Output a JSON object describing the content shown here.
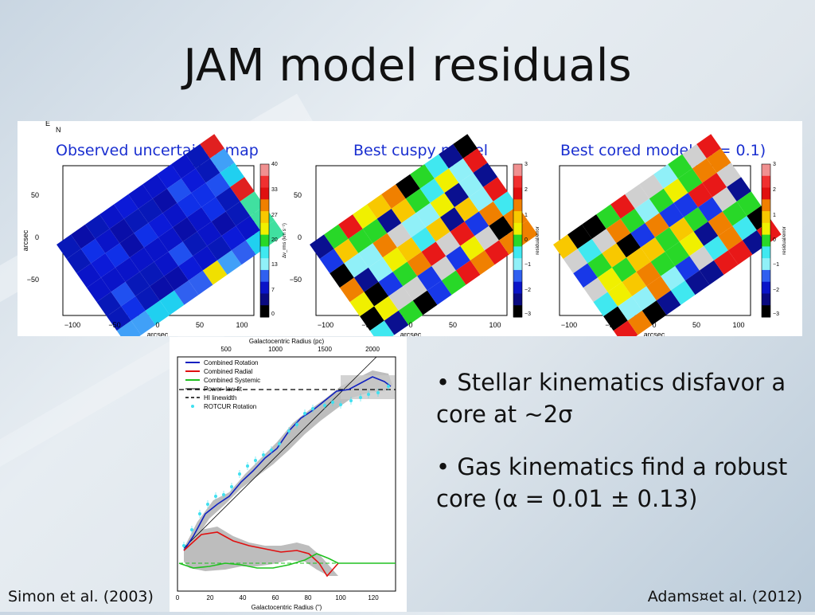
{
  "slide": {
    "title": "JAM model residuals",
    "citation_left": "Simon et al. (2003)",
    "citation_right": "Adams¤et al. (2012)"
  },
  "maps": {
    "titles": [
      "Observed uncertainty map",
      "Best cuspy model",
      "Best cored model (α = 0.1)"
    ],
    "axis_label": "arcsec",
    "x_ticks": [
      "−100",
      "−50",
      "0",
      "50",
      "100"
    ],
    "y_ticks": [
      "50",
      "0",
      "−50"
    ],
    "compass": [
      "E",
      "N"
    ],
    "colorbar1": {
      "ticks": [
        "40",
        "33",
        "27",
        "20",
        "13",
        "7",
        "0"
      ],
      "label": "Δv_rms (km s⁻¹)"
    },
    "colorbar2": {
      "ticks": [
        "3",
        "2",
        "1",
        "0",
        "−1",
        "−2",
        "−3"
      ],
      "label": "residual/error"
    }
  },
  "rotation_plot": {
    "top_axis_label": "Galactocentric Radius (pc)",
    "top_ticks": [
      "500",
      "1000",
      "1500",
      "2000"
    ],
    "bottom_axis_label": "Galactocentric Radius (\")",
    "bottom_ticks": [
      "0",
      "20",
      "40",
      "60",
      "80",
      "100",
      "120"
    ],
    "legend": [
      "Combined Rotation",
      "Combined Radial",
      "Combined Systemic",
      "Power−law fit",
      "HI linewidth",
      "ROTCUR Rotation"
    ],
    "colors": {
      "rotation": "#1020c0",
      "radial": "#e01010",
      "systemic": "#20c020",
      "rotcur": "#40e0f0",
      "band": "#b8b8b8"
    }
  },
  "bullets": [
    "• Stellar kinematics disfavor a core at ~2σ",
    "• Gas kinematics find a robust core (α = 0.01 ± 0.13)"
  ]
}
